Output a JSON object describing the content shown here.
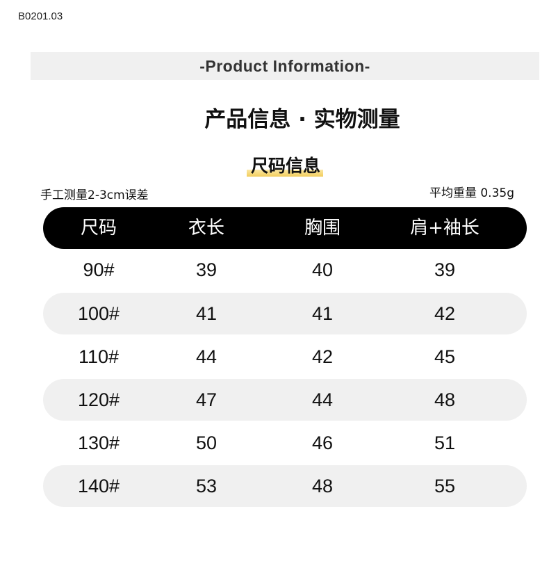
{
  "code": "B0201.03",
  "banner": "-Product  Information-",
  "title": "产品信息 · 实物测量",
  "subtitle": "尺码信息",
  "note_left": "手工测量2-3cm误差",
  "note_right": "平均重量 0.35g",
  "colors": {
    "band": "#f0f0f0",
    "header_bg": "#000000",
    "stripe": "#f0f0f0",
    "highlight": "#f2cd5c"
  },
  "table": {
    "headers": [
      "尺码",
      "衣长",
      "胸围",
      "肩+袖长"
    ],
    "rows": [
      [
        "90#",
        "39",
        "40",
        "39"
      ],
      [
        "100#",
        "41",
        "41",
        "42"
      ],
      [
        "110#",
        "44",
        "42",
        "45"
      ],
      [
        "120#",
        "47",
        "44",
        "48"
      ],
      [
        "130#",
        "50",
        "46",
        "51"
      ],
      [
        "140#",
        "53",
        "48",
        "55"
      ]
    ]
  }
}
